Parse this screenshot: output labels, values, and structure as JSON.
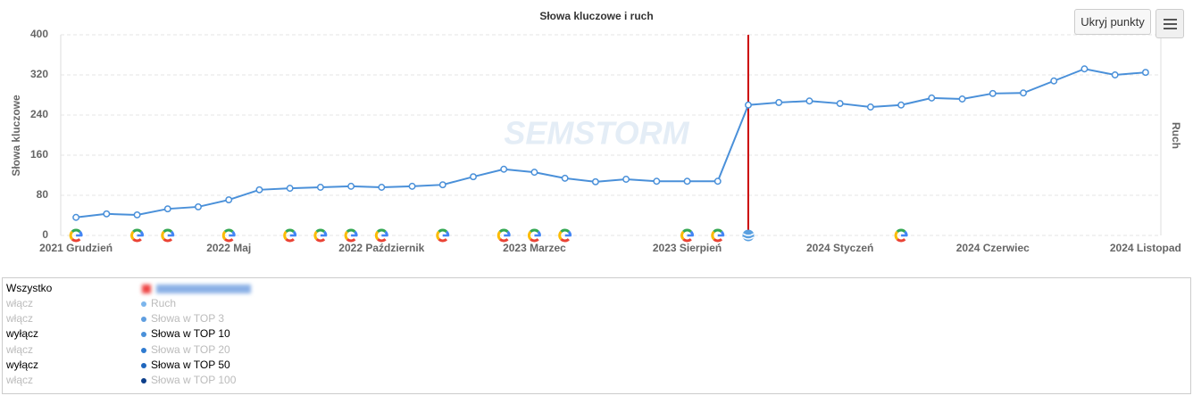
{
  "chart_data": {
    "type": "line",
    "title": "Słowa kluczowe i ruch",
    "y_label": "Słowa kluczowe",
    "y2_label": "Ruch",
    "watermark": "SEMSTORM",
    "button": "Ukryj punkty",
    "categories": [
      "2021 Grudzień",
      null,
      null,
      null,
      null,
      "2022 Maj",
      null,
      null,
      null,
      null,
      "2022 Październik",
      null,
      null,
      null,
      null,
      "2023 Marzec",
      null,
      null,
      null,
      null,
      "2023 Sierpień",
      null,
      null,
      null,
      null,
      "2024 Styczeń",
      null,
      null,
      null,
      null,
      "2024 Czerwiec",
      null,
      null,
      null,
      null,
      "2024 Listopad"
    ],
    "values": [
      36,
      43,
      41,
      53,
      57,
      71,
      91,
      94,
      96,
      98,
      96,
      98,
      101,
      117,
      132,
      126,
      114,
      107,
      112,
      108,
      108,
      108,
      260,
      265,
      268,
      263,
      256,
      260,
      274,
      272,
      283,
      284,
      308,
      332,
      320,
      325
    ],
    "color": "#4a90d9",
    "ylim": [
      0,
      400
    ],
    "yticks": [
      0,
      80,
      160,
      240,
      320,
      400
    ],
    "grid": true,
    "google_markers": [
      0,
      2,
      3,
      5,
      7,
      8,
      9,
      10,
      12,
      14,
      15,
      16,
      20,
      21,
      27
    ],
    "event_marker": 22,
    "legend": {
      "all": "Wszystko",
      "rows": [
        {
          "toggle": "włącz",
          "name": "Ruch",
          "color": "#7cb5ec",
          "active": false
        },
        {
          "toggle": "włącz",
          "name": "Słowa w TOP 3",
          "color": "#5f9ee0",
          "active": false
        },
        {
          "toggle": "wyłącz",
          "name": "Słowa w TOP 10",
          "color": "#4a90d9",
          "active": true
        },
        {
          "toggle": "włącz",
          "name": "Słowa w TOP 20",
          "color": "#2f7bd0",
          "active": false
        },
        {
          "toggle": "wyłącz",
          "name": "Słowa w TOP 50",
          "color": "#1f66bd",
          "active": true
        },
        {
          "toggle": "włącz",
          "name": "Słowa w TOP 100",
          "color": "#0c3e8a",
          "active": false
        }
      ]
    }
  }
}
